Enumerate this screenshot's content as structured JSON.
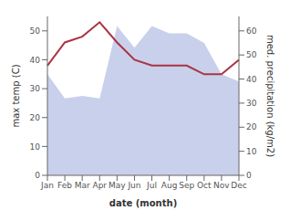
{
  "chart_data": {
    "type": "line",
    "categories": [
      "Jan",
      "Feb",
      "Mar",
      "Apr",
      "May",
      "Jun",
      "Jul",
      "Aug",
      "Sep",
      "Oct",
      "Nov",
      "Dec"
    ],
    "xlabel": "date (month)",
    "ylabel": "max temp (C)",
    "y2label": "med. precipitation (kg/m2)",
    "ylim": [
      0,
      55
    ],
    "yticks": [
      0,
      10,
      20,
      30,
      40,
      50
    ],
    "y2lim": [
      0,
      66
    ],
    "y2ticks": [
      0,
      10,
      20,
      30,
      40,
      50,
      60
    ],
    "series": [
      {
        "type": "area",
        "axis": "y2",
        "color": "#c0c8e8",
        "values": [
          42,
          32,
          33,
          32,
          62,
          53,
          62,
          59,
          59,
          55,
          42,
          39
        ]
      },
      {
        "type": "line",
        "color": "#aa3344",
        "values": [
          38,
          46,
          48,
          53,
          46,
          40,
          38,
          38,
          38,
          35,
          35,
          40
        ]
      }
    ]
  }
}
